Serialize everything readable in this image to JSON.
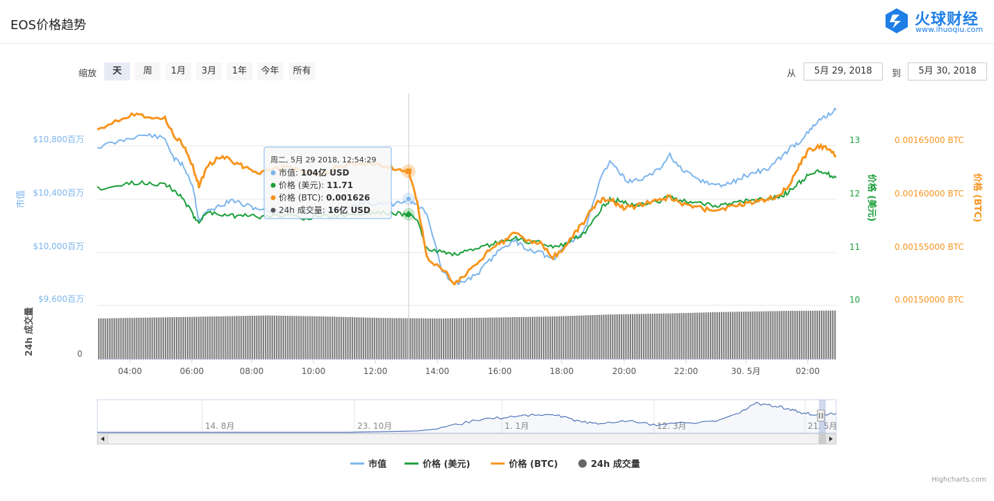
{
  "header": {
    "title": "EOS价格趋势",
    "logo_name": "火球财经",
    "logo_url": "www.ihuoqiu.com"
  },
  "toolbar": {
    "zoom_label": "缩放",
    "zoom_buttons": [
      "天",
      "周",
      "1月",
      "3月",
      "1年",
      "今年",
      "所有"
    ],
    "active_zoom": "天",
    "from_label": "从",
    "from_value": "5月 29, 2018",
    "to_label": "到",
    "to_value": "5月 30, 2018"
  },
  "tooltip": {
    "header": "周二, 5月 29 2018, 12:54:29",
    "rows": [
      {
        "label": "市值: ",
        "value": "104亿 USD",
        "color": "#7cb5ec"
      },
      {
        "label": "价格 (美元): ",
        "value": "11.71",
        "color": "#1a9e39"
      },
      {
        "label": "价格 (BTC): ",
        "value": "0.001626",
        "color": "#f7941d"
      },
      {
        "label": "24h 成交量: ",
        "value": "16亿 USD",
        "color": "#555555"
      }
    ]
  },
  "legend": [
    {
      "name": "市值",
      "color": "#7cb5ec",
      "symbol": "line"
    },
    {
      "name": "价格 (美元)",
      "color": "#1a9e39",
      "symbol": "line"
    },
    {
      "name": "价格 (BTC)",
      "color": "#f7941d",
      "symbol": "line"
    },
    {
      "name": "24h 成交量",
      "color": "#666666",
      "symbol": "circle"
    }
  ],
  "credits": "Highcharts.com",
  "chart_data": {
    "type": "line",
    "x_axis": {
      "tick_labels": [
        "04:00",
        "06:00",
        "08:00",
        "10:00",
        "12:00",
        "14:00",
        "16:00",
        "18:00",
        "20:00",
        "22:00",
        "30. 5月",
        "02:00"
      ],
      "range_hours": [
        2.8,
        26.8
      ]
    },
    "y_axes": [
      {
        "title": "市值",
        "tick_labels": [
          "$10,800百万",
          "$10,400百万",
          "$10,000百万",
          "$9,600百万"
        ],
        "range": [
          9600,
          10800
        ],
        "color": "#7cb5ec"
      },
      {
        "title": "价格 (美元)",
        "tick_labels": [
          "13",
          "12",
          "11",
          "10"
        ],
        "range": [
          10,
          13
        ],
        "color": "#1a9e39"
      },
      {
        "title": "价格 (BTC)",
        "tick_labels": [
          "0.00165000 BTC",
          "0.00160000 BTC",
          "0.00155000 BTC",
          "0.00150000 BTC"
        ],
        "range": [
          0.0015,
          0.00165
        ],
        "color": "#f7941d"
      },
      {
        "title": "24h 成交量",
        "tick_labels": [
          "0"
        ],
        "color": "#555555"
      }
    ],
    "crosshair_hour": 12.91,
    "series": [
      {
        "name": "市值",
        "axis": 0,
        "color": "#7cb5ec",
        "x": [
          2.8,
          3.5,
          4.0,
          4.5,
          5.0,
          5.3,
          5.6,
          5.9,
          6.1,
          6.4,
          6.8,
          7.2,
          7.6,
          8.0,
          8.5,
          9.0,
          9.5,
          10.0,
          10.5,
          11.0,
          11.5,
          12.0,
          12.5,
          12.91,
          13.2,
          13.5,
          14.0,
          14.4,
          14.8,
          15.2,
          15.6,
          16.0,
          16.4,
          16.8,
          17.2,
          17.6,
          18.0,
          18.3,
          18.6,
          18.9,
          19.2,
          19.5,
          19.8,
          20.1,
          20.5,
          21.0,
          21.4,
          21.8,
          22.2,
          22.6,
          23.0,
          23.4,
          23.8,
          24.2,
          24.6,
          25.0,
          25.3,
          25.6,
          25.9,
          26.2,
          26.5,
          26.8
        ],
        "y": [
          10790,
          10830,
          10870,
          10880,
          10850,
          10700,
          10650,
          10500,
          10240,
          10310,
          10350,
          10390,
          10350,
          10330,
          10300,
          10330,
          10310,
          10290,
          10320,
          10340,
          10370,
          10360,
          10360,
          10400,
          10350,
          10300,
          9860,
          9750,
          9790,
          9850,
          9950,
          10050,
          10080,
          10020,
          10000,
          9930,
          10060,
          10100,
          10150,
          10350,
          10600,
          10690,
          10580,
          10530,
          10550,
          10610,
          10730,
          10610,
          10560,
          10520,
          10500,
          10520,
          10570,
          10600,
          10630,
          10710,
          10780,
          10830,
          10900,
          10980,
          11030,
          11070
        ]
      },
      {
        "name": "价格 (美元)",
        "axis": 1,
        "color": "#1a9e39",
        "x": [
          2.8,
          3.5,
          4.0,
          4.5,
          5.0,
          5.3,
          5.6,
          5.9,
          6.1,
          6.4,
          6.8,
          7.2,
          7.6,
          8.0,
          8.5,
          9.0,
          9.5,
          10.0,
          10.5,
          11.0,
          11.5,
          12.0,
          12.5,
          12.91,
          13.2,
          13.5,
          14.0,
          14.4,
          14.8,
          15.2,
          15.6,
          16.0,
          16.4,
          16.8,
          17.2,
          17.6,
          18.0,
          18.3,
          18.6,
          18.9,
          19.2,
          19.5,
          19.8,
          20.1,
          20.5,
          21.0,
          21.4,
          21.8,
          22.2,
          22.6,
          23.0,
          23.4,
          23.8,
          24.2,
          24.6,
          25.0,
          25.3,
          25.6,
          25.9,
          26.2,
          26.5,
          26.8
        ],
        "y": [
          12.2,
          12.25,
          12.3,
          12.3,
          12.28,
          12.15,
          12.0,
          11.7,
          11.57,
          11.75,
          11.72,
          11.68,
          11.72,
          11.65,
          11.68,
          11.7,
          11.65,
          11.66,
          11.68,
          11.7,
          11.72,
          11.75,
          11.72,
          11.71,
          11.6,
          11.05,
          11.0,
          10.95,
          11.0,
          11.05,
          11.15,
          11.2,
          11.25,
          11.2,
          11.18,
          11.1,
          11.15,
          11.25,
          11.35,
          11.6,
          11.85,
          12.0,
          11.95,
          11.9,
          11.9,
          11.95,
          12.05,
          11.95,
          11.95,
          11.9,
          11.88,
          11.9,
          11.95,
          11.98,
          12.0,
          12.05,
          12.15,
          12.3,
          12.45,
          12.5,
          12.48,
          12.4
        ]
      },
      {
        "name": "价格 (BTC)",
        "axis": 2,
        "color": "#f7941d",
        "x": [
          2.8,
          3.5,
          4.0,
          4.5,
          5.0,
          5.3,
          5.6,
          5.9,
          6.1,
          6.4,
          6.8,
          7.2,
          7.6,
          8.0,
          8.5,
          9.0,
          9.5,
          10.0,
          10.5,
          11.0,
          11.5,
          12.0,
          12.5,
          12.91,
          13.2,
          13.5,
          14.0,
          14.4,
          14.8,
          15.2,
          15.6,
          16.0,
          16.4,
          16.8,
          17.2,
          17.6,
          18.0,
          18.3,
          18.6,
          18.9,
          19.2,
          19.5,
          19.8,
          20.1,
          20.5,
          21.0,
          21.4,
          21.8,
          22.2,
          22.6,
          23.0,
          23.4,
          23.8,
          24.2,
          24.6,
          25.0,
          25.3,
          25.6,
          25.9,
          26.2,
          26.5,
          26.8
        ],
        "y": [
          0.001666,
          0.001675,
          0.00168,
          0.001678,
          0.001675,
          0.00166,
          0.00165,
          0.00163,
          0.001612,
          0.001632,
          0.00164,
          0.001635,
          0.00163,
          0.001625,
          0.001628,
          0.00163,
          0.001625,
          0.001622,
          0.001628,
          0.001632,
          0.001634,
          0.001632,
          0.001628,
          0.001626,
          0.001595,
          0.001545,
          0.001535,
          0.00152,
          0.00153,
          0.00154,
          0.001555,
          0.00156,
          0.001568,
          0.00156,
          0.001558,
          0.001545,
          0.001555,
          0.001568,
          0.001578,
          0.001592,
          0.0016,
          0.0016,
          0.001592,
          0.001592,
          0.001595,
          0.001598,
          0.001602,
          0.001595,
          0.001592,
          0.00159,
          0.00159,
          0.001592,
          0.001595,
          0.001598,
          0.0016,
          0.001604,
          0.001615,
          0.001632,
          0.001645,
          0.00165,
          0.001648,
          0.00164
        ]
      },
      {
        "name": "24h 成交量",
        "axis": 3,
        "color": "#808080",
        "relative_levels": [
          0.82,
          0.84,
          0.86,
          0.88,
          0.86,
          0.83,
          0.82,
          0.84,
          0.86,
          0.9,
          0.92,
          0.95,
          0.97,
          0.98
        ]
      }
    ]
  }
}
